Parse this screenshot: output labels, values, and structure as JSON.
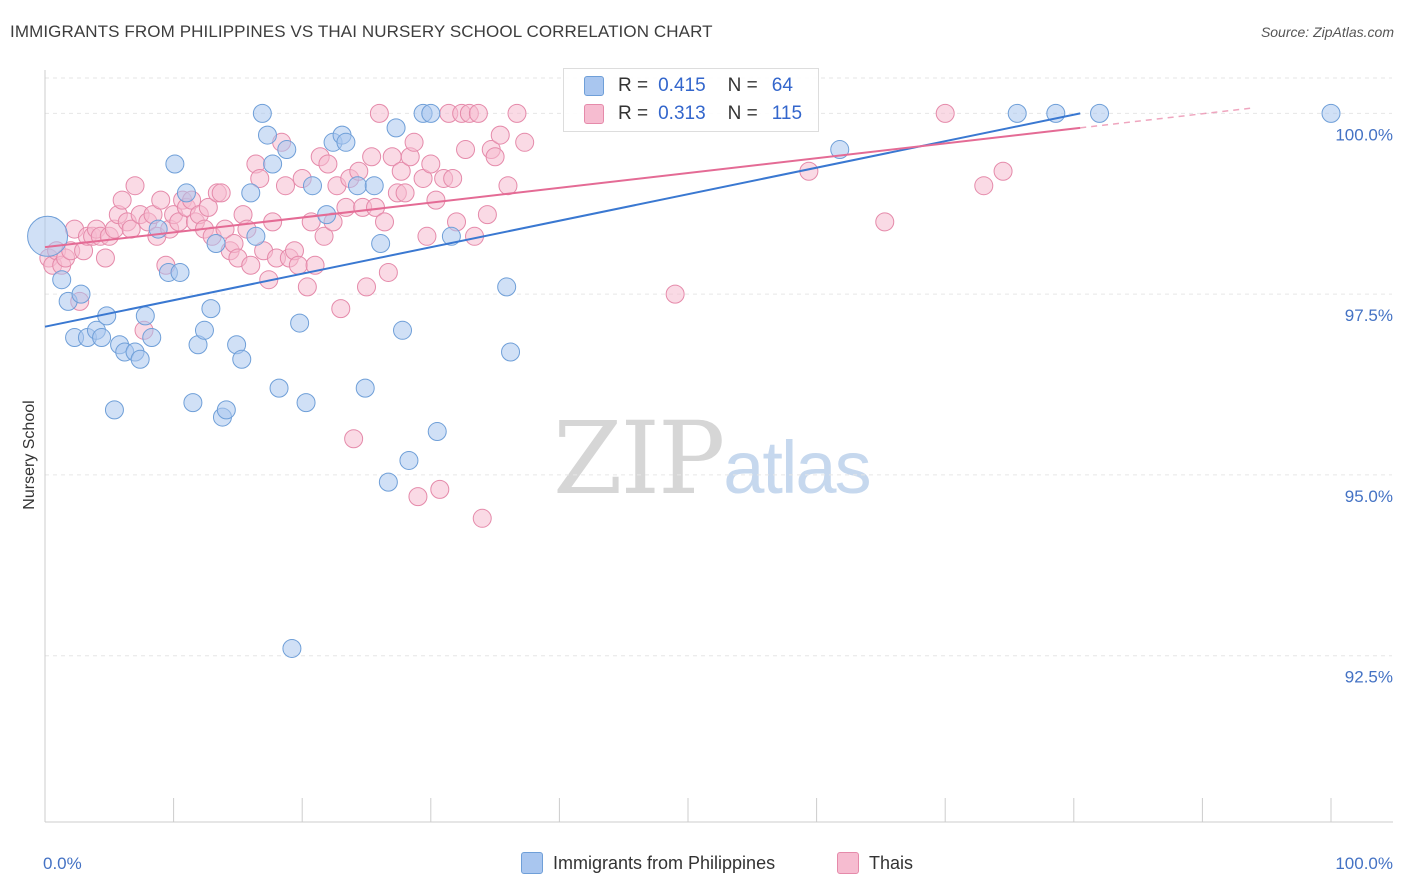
{
  "header": {
    "title": "IMMIGRANTS FROM PHILIPPINES VS THAI NURSERY SCHOOL CORRELATION CHART",
    "source": "Source: ZipAtlas.com"
  },
  "watermark": {
    "zip": "ZIP",
    "atlas": "atlas"
  },
  "colors": {
    "blue_fill": "#a9c6ef",
    "blue_stroke": "#6f9fd8",
    "blue_line": "#3a78d1",
    "pink_fill": "#f6bcd0",
    "pink_stroke": "#e58aaa",
    "pink_line": "#e46b95",
    "tick_text": "#4472c4",
    "grid": "#e6e6e6"
  },
  "stat_legend": {
    "rows": [
      {
        "r_label": "R =",
        "r_value": "0.415",
        "n_label": "N =",
        "n_value": "64"
      },
      {
        "r_label": "R =",
        "r_value": "0.313",
        "n_label": "N =",
        "n_value": "115"
      }
    ]
  },
  "chart_data": {
    "type": "scatter",
    "title": "IMMIGRANTS FROM PHILIPPINES VS THAI NURSERY SCHOOL CORRELATION CHART",
    "xlabel": "",
    "ylabel": "Nursery School",
    "xlim": [
      0,
      100
    ],
    "ylim": [
      90.2,
      100.6
    ],
    "x_tick_labels": [
      "0.0%",
      "100.0%"
    ],
    "y_ticks": [
      {
        "value": 92.5,
        "label": "92.5%"
      },
      {
        "value": 95.0,
        "label": "95.0%"
      },
      {
        "value": 97.5,
        "label": "97.5%"
      },
      {
        "value": 100.0,
        "label": "100.0%"
      }
    ],
    "grid": "horizontal-dashed",
    "legend_position": "bottom",
    "series": [
      {
        "name": "Immigrants from Philippines",
        "color": "#a9c6ef",
        "trend": {
          "x": [
            0,
            80.5
          ],
          "y": [
            97.05,
            100.0
          ]
        },
        "points": [
          [
            0.2,
            98.3
          ],
          [
            1.3,
            97.7
          ],
          [
            1.8,
            97.4
          ],
          [
            2.3,
            96.9
          ],
          [
            2.8,
            97.5
          ],
          [
            3.3,
            96.9
          ],
          [
            4.0,
            97.0
          ],
          [
            4.4,
            96.9
          ],
          [
            4.8,
            97.2
          ],
          [
            5.4,
            95.9
          ],
          [
            5.8,
            96.8
          ],
          [
            6.2,
            96.7
          ],
          [
            7.0,
            96.7
          ],
          [
            7.4,
            96.6
          ],
          [
            7.8,
            97.2
          ],
          [
            8.3,
            96.9
          ],
          [
            8.8,
            98.4
          ],
          [
            9.6,
            97.8
          ],
          [
            10.1,
            99.3
          ],
          [
            10.5,
            97.8
          ],
          [
            11.0,
            98.9
          ],
          [
            11.5,
            96.0
          ],
          [
            11.9,
            96.8
          ],
          [
            12.4,
            97.0
          ],
          [
            12.9,
            97.3
          ],
          [
            13.3,
            98.2
          ],
          [
            13.8,
            95.8
          ],
          [
            14.1,
            95.9
          ],
          [
            14.9,
            96.8
          ],
          [
            15.3,
            96.6
          ],
          [
            16.0,
            98.9
          ],
          [
            16.4,
            98.3
          ],
          [
            16.9,
            100.0
          ],
          [
            17.3,
            99.7
          ],
          [
            17.7,
            99.3
          ],
          [
            18.2,
            96.2
          ],
          [
            18.8,
            99.5
          ],
          [
            19.2,
            92.6
          ],
          [
            19.8,
            97.1
          ],
          [
            20.3,
            96.0
          ],
          [
            20.8,
            99.0
          ],
          [
            21.9,
            98.6
          ],
          [
            22.4,
            99.6
          ],
          [
            23.1,
            99.7
          ],
          [
            23.4,
            99.6
          ],
          [
            24.3,
            99.0
          ],
          [
            24.9,
            96.2
          ],
          [
            25.6,
            99.0
          ],
          [
            26.1,
            98.2
          ],
          [
            26.7,
            94.9
          ],
          [
            27.3,
            99.8
          ],
          [
            27.8,
            97.0
          ],
          [
            28.3,
            95.2
          ],
          [
            29.4,
            100.0
          ],
          [
            30.0,
            100.0
          ],
          [
            30.5,
            95.6
          ],
          [
            31.6,
            98.3
          ],
          [
            35.9,
            97.6
          ],
          [
            36.2,
            96.7
          ],
          [
            61.8,
            99.5
          ],
          [
            75.6,
            100.0
          ],
          [
            78.6,
            100.0
          ],
          [
            82.0,
            100.0
          ],
          [
            100.0,
            100.0
          ]
        ]
      },
      {
        "name": "Thais",
        "color": "#f6bcd0",
        "trend": {
          "x": [
            0,
            80.5
          ],
          "y": [
            98.15,
            99.8
          ]
        },
        "points": [
          [
            0.3,
            98.0
          ],
          [
            0.6,
            97.9
          ],
          [
            0.9,
            98.1
          ],
          [
            1.3,
            97.9
          ],
          [
            1.6,
            98.0
          ],
          [
            2.0,
            98.1
          ],
          [
            2.3,
            98.4
          ],
          [
            2.7,
            97.4
          ],
          [
            3.0,
            98.1
          ],
          [
            3.3,
            98.3
          ],
          [
            3.7,
            98.3
          ],
          [
            4.0,
            98.4
          ],
          [
            4.3,
            98.3
          ],
          [
            4.7,
            98.0
          ],
          [
            5.0,
            98.3
          ],
          [
            5.4,
            98.4
          ],
          [
            5.7,
            98.6
          ],
          [
            6.0,
            98.8
          ],
          [
            6.4,
            98.5
          ],
          [
            6.7,
            98.4
          ],
          [
            7.0,
            99.0
          ],
          [
            7.4,
            98.6
          ],
          [
            7.7,
            97.0
          ],
          [
            8.0,
            98.5
          ],
          [
            8.4,
            98.6
          ],
          [
            8.7,
            98.3
          ],
          [
            9.0,
            98.8
          ],
          [
            9.4,
            97.9
          ],
          [
            9.7,
            98.4
          ],
          [
            10.0,
            98.6
          ],
          [
            10.4,
            98.5
          ],
          [
            10.7,
            98.8
          ],
          [
            11.0,
            98.7
          ],
          [
            11.4,
            98.8
          ],
          [
            11.7,
            98.5
          ],
          [
            12.0,
            98.6
          ],
          [
            12.4,
            98.4
          ],
          [
            12.7,
            98.7
          ],
          [
            13.0,
            98.3
          ],
          [
            13.4,
            98.9
          ],
          [
            13.7,
            98.9
          ],
          [
            14.0,
            98.4
          ],
          [
            14.4,
            98.1
          ],
          [
            14.7,
            98.2
          ],
          [
            15.0,
            98.0
          ],
          [
            15.4,
            98.6
          ],
          [
            15.7,
            98.4
          ],
          [
            16.0,
            97.9
          ],
          [
            16.4,
            99.3
          ],
          [
            16.7,
            99.1
          ],
          [
            17.0,
            98.1
          ],
          [
            17.4,
            97.7
          ],
          [
            17.7,
            98.5
          ],
          [
            18.0,
            98.0
          ],
          [
            18.4,
            99.6
          ],
          [
            18.7,
            99.0
          ],
          [
            19.0,
            98.0
          ],
          [
            19.4,
            98.1
          ],
          [
            19.7,
            97.9
          ],
          [
            20.0,
            99.1
          ],
          [
            20.4,
            97.6
          ],
          [
            20.7,
            98.5
          ],
          [
            21.0,
            97.9
          ],
          [
            21.4,
            99.4
          ],
          [
            21.7,
            98.3
          ],
          [
            22.0,
            99.3
          ],
          [
            22.4,
            98.5
          ],
          [
            22.7,
            99.0
          ],
          [
            23.0,
            97.3
          ],
          [
            23.4,
            98.7
          ],
          [
            23.7,
            99.1
          ],
          [
            24.0,
            95.5
          ],
          [
            24.4,
            99.2
          ],
          [
            24.7,
            98.7
          ],
          [
            25.0,
            97.6
          ],
          [
            25.4,
            99.4
          ],
          [
            25.7,
            98.7
          ],
          [
            26.0,
            100.0
          ],
          [
            26.4,
            98.5
          ],
          [
            26.7,
            97.8
          ],
          [
            27.0,
            99.4
          ],
          [
            27.4,
            98.9
          ],
          [
            27.7,
            99.2
          ],
          [
            28.0,
            98.9
          ],
          [
            28.4,
            99.4
          ],
          [
            28.7,
            99.6
          ],
          [
            29.0,
            94.7
          ],
          [
            29.4,
            99.1
          ],
          [
            29.7,
            98.3
          ],
          [
            30.0,
            99.3
          ],
          [
            30.4,
            98.8
          ],
          [
            30.7,
            94.8
          ],
          [
            31.0,
            99.1
          ],
          [
            31.4,
            100.0
          ],
          [
            31.7,
            99.1
          ],
          [
            32.0,
            98.5
          ],
          [
            32.4,
            100.0
          ],
          [
            32.7,
            99.5
          ],
          [
            33.0,
            100.0
          ],
          [
            33.4,
            98.3
          ],
          [
            33.7,
            100.0
          ],
          [
            34.0,
            94.4
          ],
          [
            34.4,
            98.6
          ],
          [
            34.7,
            99.5
          ],
          [
            35.0,
            99.4
          ],
          [
            35.4,
            99.7
          ],
          [
            36.0,
            99.0
          ],
          [
            36.7,
            100.0
          ],
          [
            37.3,
            99.6
          ],
          [
            49.0,
            97.5
          ],
          [
            59.4,
            99.2
          ],
          [
            65.3,
            98.5
          ],
          [
            70.0,
            100.0
          ],
          [
            73.0,
            99.0
          ],
          [
            74.5,
            99.2
          ]
        ]
      }
    ]
  },
  "legend": {
    "items": [
      {
        "label": "Immigrants from Philippines"
      },
      {
        "label": "Thais"
      }
    ]
  }
}
